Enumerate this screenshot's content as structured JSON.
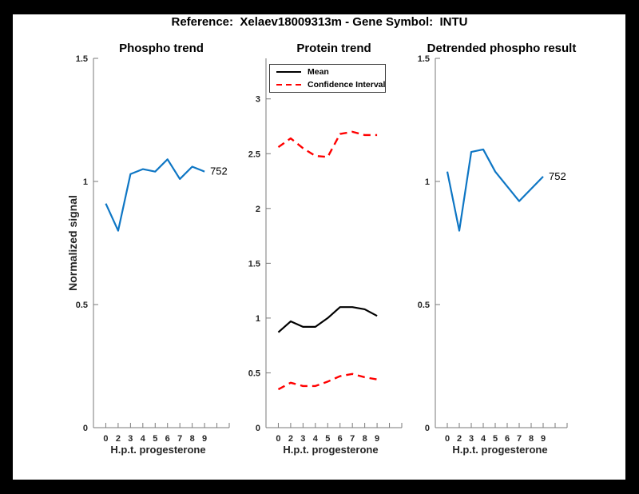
{
  "figure": {
    "title": "Reference:  Xelaev18009313m - Gene Symbol:  INTU",
    "background_color": "#ffffff",
    "frame_color": "#000000"
  },
  "colors": {
    "line_blue": "#0e76c4",
    "line_black": "#000000",
    "line_red": "#ff0000",
    "axis_gray": "#7a7a7a",
    "tick_label_gray": "#262626"
  },
  "chart_data": [
    {
      "type": "line",
      "title": "Phospho trend",
      "xlabel": "H.p.t. progesterone",
      "ylabel": "Normalized signal",
      "x_categories": [
        "0",
        "2",
        "3",
        "4",
        "5",
        "6",
        "7",
        "8",
        "9"
      ],
      "ylim": [
        0,
        1.5
      ],
      "yticks": [
        "0",
        "0.5",
        "1",
        "1.5"
      ],
      "grid": false,
      "legend": null,
      "series": [
        {
          "name": "phospho-signal",
          "color": "#0e76c4",
          "dash": false,
          "values": [
            0.91,
            0.8,
            1.03,
            1.05,
            1.04,
            1.09,
            1.01,
            1.06,
            1.04
          ],
          "end_label": "752"
        }
      ]
    },
    {
      "type": "line",
      "title": "Protein trend",
      "xlabel": "H.p.t. progesterone",
      "ylabel": "",
      "x_categories": [
        "0",
        "2",
        "3",
        "4",
        "5",
        "6",
        "7",
        "8",
        "9"
      ],
      "ylim": [
        0,
        3.37
      ],
      "yticks": [
        "0",
        "0.5",
        "1",
        "1.5",
        "2",
        "2.5",
        "3"
      ],
      "grid": false,
      "legend_position": "top-left",
      "legend": [
        {
          "label": "Mean",
          "color": "#000000",
          "dash": false
        },
        {
          "label": "Confidence Interval",
          "color": "#ff0000",
          "dash": true
        }
      ],
      "series": [
        {
          "name": "ci-upper",
          "color": "#ff0000",
          "dash": true,
          "values": [
            2.56,
            2.64,
            2.55,
            2.48,
            2.47,
            2.68,
            2.7,
            2.67,
            2.67
          ],
          "end_label": null
        },
        {
          "name": "mean",
          "color": "#000000",
          "dash": false,
          "values": [
            0.87,
            0.97,
            0.92,
            0.92,
            1.0,
            1.1,
            1.1,
            1.08,
            1.02
          ],
          "end_label": null
        },
        {
          "name": "ci-lower",
          "color": "#ff0000",
          "dash": true,
          "values": [
            0.35,
            0.41,
            0.38,
            0.38,
            0.42,
            0.47,
            0.49,
            0.46,
            0.44
          ],
          "end_label": null
        }
      ]
    },
    {
      "type": "line",
      "title": "Detrended phospho result",
      "xlabel": "H.p.t. progesterone",
      "ylabel": "",
      "x_categories": [
        "0",
        "2",
        "3",
        "4",
        "5",
        "6",
        "7",
        "8",
        "9"
      ],
      "ylim": [
        0,
        1.5
      ],
      "yticks": [
        "0",
        "0.5",
        "1",
        "1.5"
      ],
      "grid": false,
      "legend": null,
      "series": [
        {
          "name": "detrended-signal",
          "color": "#0e76c4",
          "dash": false,
          "values": [
            1.04,
            0.8,
            1.12,
            1.13,
            1.04,
            0.98,
            0.92,
            0.97,
            1.02
          ],
          "end_label": "752"
        }
      ]
    }
  ]
}
